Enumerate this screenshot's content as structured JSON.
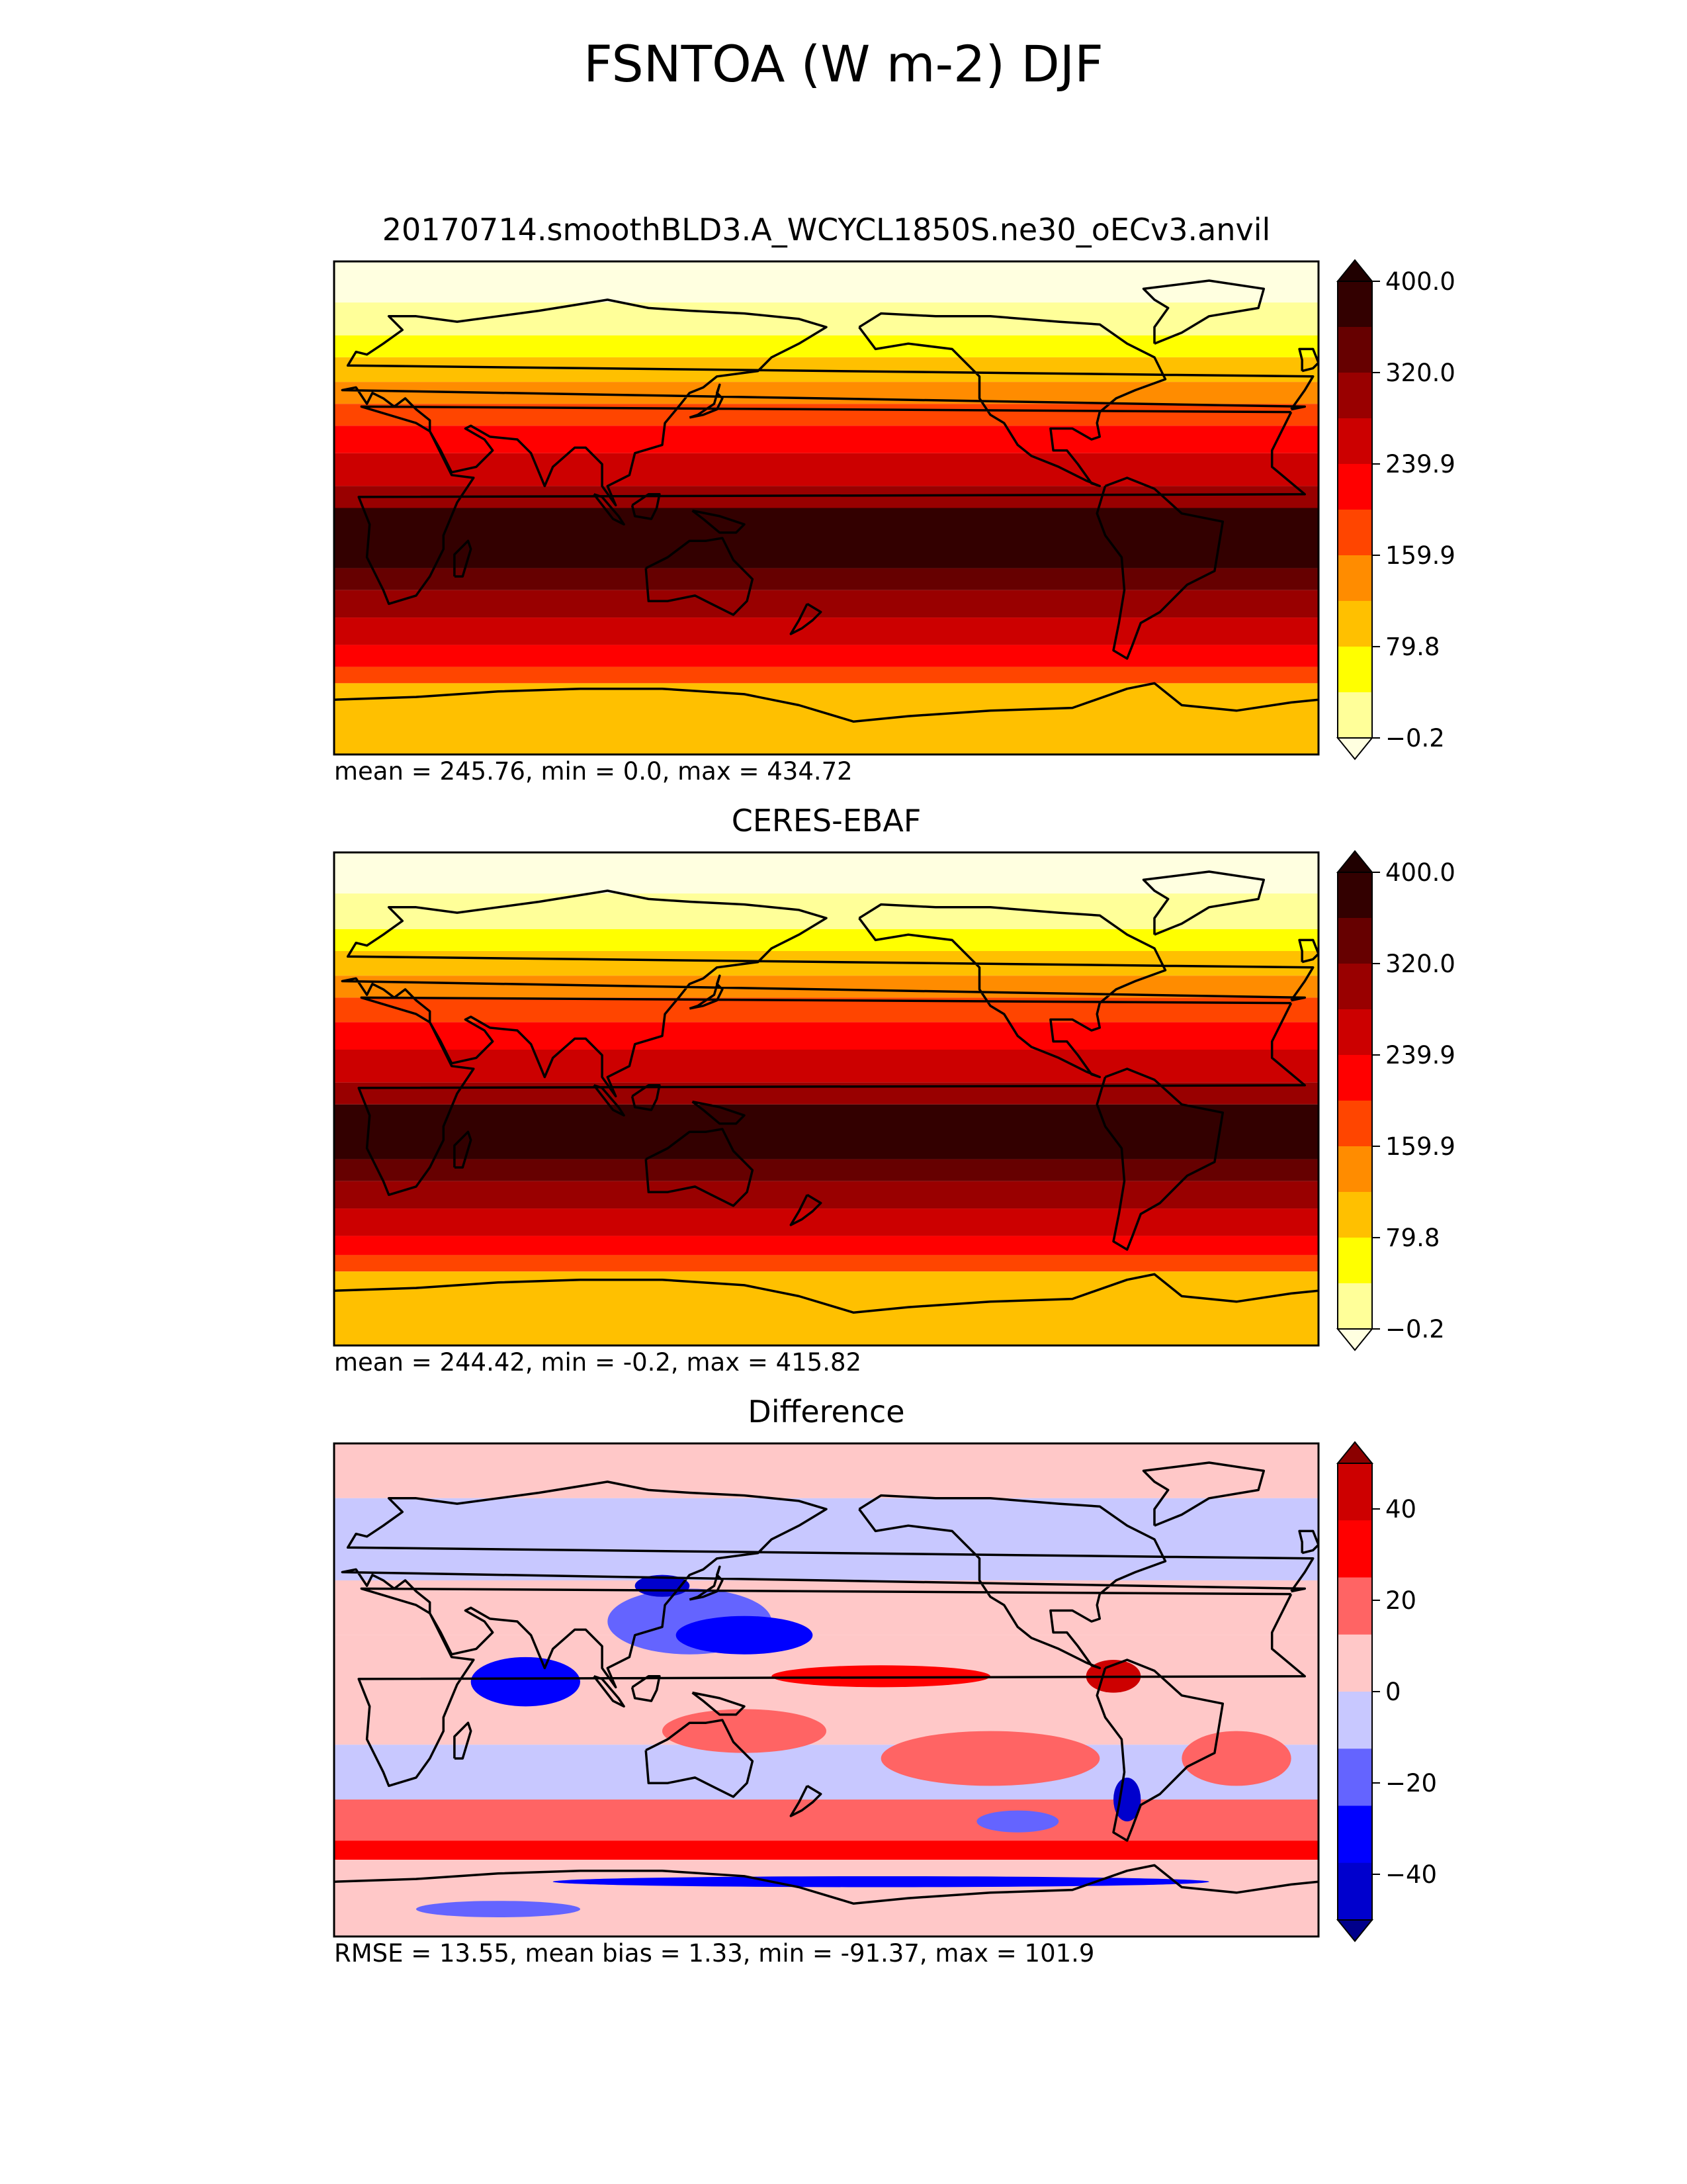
{
  "figure_title": "FSNTOA (W m-2) DJF",
  "colors": {
    "hot": [
      "#ffffe0",
      "#ffff99",
      "#ffff00",
      "#ffc000",
      "#ff8c00",
      "#ff4500",
      "#ff0000",
      "#cc0000",
      "#990000",
      "#660000",
      "#330000",
      "#200000"
    ],
    "diff": [
      "#00008b",
      "#0000cd",
      "#0000ff",
      "#6464ff",
      "#c8c8ff",
      "#ffc8c8",
      "#ff6464",
      "#ff0000",
      "#cd0000",
      "#8b0000"
    ],
    "coast": "#000000"
  },
  "chart_data": [
    {
      "type": "heatmap",
      "name": "test",
      "title": "20170714.smoothBLD3.A_WCYCL1850S.ne30_oECv3.anvil",
      "stats": "mean = 245.76, min = 0.0, max = 434.72",
      "colorbar_ticks": [
        "400.0",
        "320.0",
        "239.9",
        "159.9",
        "79.8",
        "−0.2"
      ],
      "colorbar_tick_values": [
        400.0,
        320.0,
        239.9,
        159.9,
        79.8,
        -0.2
      ],
      "colorbar_range": [
        -0.2,
        400.0
      ],
      "extend": "both",
      "bands_from_north": [
        {
          "lat_to": 75,
          "level": 0
        },
        {
          "lat_to": 63,
          "level": 1
        },
        {
          "lat_to": 55,
          "level": 2
        },
        {
          "lat_to": 46,
          "level": 3
        },
        {
          "lat_to": 38,
          "level": 4
        },
        {
          "lat_to": 30,
          "level": 5
        },
        {
          "lat_to": 20,
          "level": 6
        },
        {
          "lat_to": 8,
          "level": 7
        },
        {
          "lat_to": 0,
          "level": 8
        },
        {
          "lat_to": -22,
          "level": 10
        },
        {
          "lat_to": -30,
          "level": 9
        },
        {
          "lat_to": -40,
          "level": 8
        },
        {
          "lat_to": -50,
          "level": 7
        },
        {
          "lat_to": -58,
          "level": 6
        },
        {
          "lat_to": -64,
          "level": 5
        },
        {
          "lat_to": -90,
          "level": 3
        }
      ]
    },
    {
      "type": "heatmap",
      "name": "reference",
      "title": "CERES-EBAF",
      "stats": "mean = 244.42, min = -0.2, max = 415.82",
      "colorbar_ticks": [
        "400.0",
        "320.0",
        "239.9",
        "159.9",
        "79.8",
        "−0.2"
      ],
      "colorbar_tick_values": [
        400.0,
        320.0,
        239.9,
        159.9,
        79.8,
        -0.2
      ],
      "colorbar_range": [
        -0.2,
        400.0
      ],
      "extend": "both",
      "bands_from_north": [
        {
          "lat_to": 75,
          "level": 0
        },
        {
          "lat_to": 62,
          "level": 1
        },
        {
          "lat_to": 54,
          "level": 2
        },
        {
          "lat_to": 45,
          "level": 3
        },
        {
          "lat_to": 37,
          "level": 4
        },
        {
          "lat_to": 28,
          "level": 5
        },
        {
          "lat_to": 18,
          "level": 6
        },
        {
          "lat_to": 6,
          "level": 7
        },
        {
          "lat_to": -2,
          "level": 8
        },
        {
          "lat_to": -22,
          "level": 10
        },
        {
          "lat_to": -30,
          "level": 9
        },
        {
          "lat_to": -40,
          "level": 8
        },
        {
          "lat_to": -50,
          "level": 7
        },
        {
          "lat_to": -57,
          "level": 6
        },
        {
          "lat_to": -63,
          "level": 5
        },
        {
          "lat_to": -90,
          "level": 3
        }
      ]
    },
    {
      "type": "heatmap",
      "name": "difference",
      "title": "Difference",
      "stats": "RMSE = 13.55, mean bias = 1.33, min = -91.37, max = 101.9",
      "colorbar_ticks": [
        "40",
        "20",
        "0",
        "−20",
        "−40"
      ],
      "colorbar_tick_values": [
        40,
        20,
        0,
        -20,
        -40
      ],
      "colorbar_range": [
        -50,
        50
      ],
      "extend": "both",
      "base_level": 5,
      "bands_from_north": [
        {
          "lat_to": 70,
          "level": 5
        },
        {
          "lat_to": 40,
          "level": 4
        },
        {
          "lat_to": 20,
          "level": 5
        },
        {
          "lat_to": -20,
          "level": 5
        },
        {
          "lat_to": -40,
          "level": 4
        },
        {
          "lat_to": -55,
          "level": 6
        },
        {
          "lat_to": -62,
          "level": 7
        },
        {
          "lat_to": -90,
          "level": 5
        }
      ],
      "anomalies": [
        {
          "lon": 75,
          "lat": 5,
          "rx": 14,
          "ry": 5,
          "level": 0
        },
        {
          "lon": 70,
          "lat": 3,
          "rx": 20,
          "ry": 9,
          "level": 2
        },
        {
          "lon": 130,
          "lat": 25,
          "rx": 30,
          "ry": 12,
          "level": 3
        },
        {
          "lon": 150,
          "lat": 20,
          "rx": 25,
          "ry": 7,
          "level": 2
        },
        {
          "lon": 120,
          "lat": 38,
          "rx": 10,
          "ry": 4,
          "level": 1
        },
        {
          "lon": 200,
          "lat": 5,
          "rx": 40,
          "ry": 4,
          "level": 7
        },
        {
          "lon": 285,
          "lat": 5,
          "rx": 10,
          "ry": 6,
          "level": 8
        },
        {
          "lon": 150,
          "lat": -15,
          "rx": 30,
          "ry": 8,
          "level": 6
        },
        {
          "lon": 240,
          "lat": -25,
          "rx": 40,
          "ry": 10,
          "level": 6
        },
        {
          "lon": 330,
          "lat": -25,
          "rx": 20,
          "ry": 10,
          "level": 6
        },
        {
          "lon": 290,
          "lat": -40,
          "rx": 5,
          "ry": 8,
          "level": 1
        },
        {
          "lon": 200,
          "lat": -70,
          "rx": 120,
          "ry": 2,
          "level": 2
        },
        {
          "lon": 60,
          "lat": -80,
          "rx": 30,
          "ry": 3,
          "level": 3
        },
        {
          "lon": 250,
          "lat": -48,
          "rx": 15,
          "ry": 4,
          "level": 3
        }
      ]
    }
  ]
}
